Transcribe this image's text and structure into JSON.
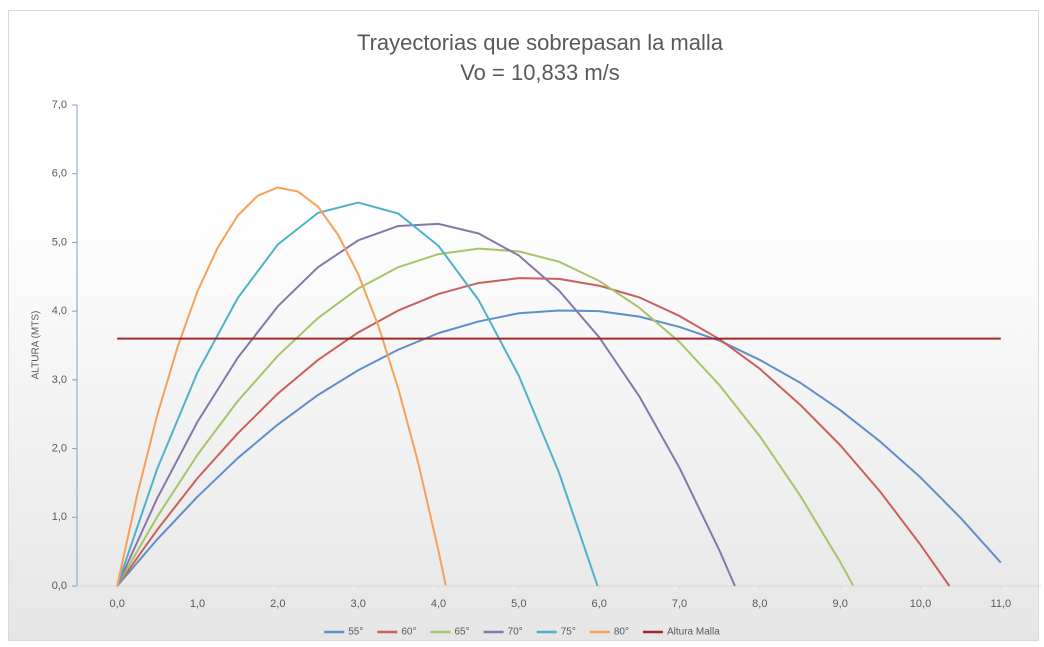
{
  "chart_data": {
    "type": "line",
    "title": "Trayectorias que sobrepasan la malla",
    "subtitle": "Vo = 10,833 m/s",
    "ylabel": "ALTURA (MTS)",
    "xlim": [
      -0.5,
      11.5
    ],
    "ylim": [
      0,
      7
    ],
    "xticks": [
      {
        "value": 0,
        "label": "0,0"
      },
      {
        "value": 1,
        "label": "1,0"
      },
      {
        "value": 2,
        "label": "2,0"
      },
      {
        "value": 3,
        "label": "3,0"
      },
      {
        "value": 4,
        "label": "4,0"
      },
      {
        "value": 5,
        "label": "5,0"
      },
      {
        "value": 6,
        "label": "6,0"
      },
      {
        "value": 7,
        "label": "7,0"
      },
      {
        "value": 8,
        "label": "8,0"
      },
      {
        "value": 9,
        "label": "9,0"
      },
      {
        "value": 10,
        "label": "10,0"
      },
      {
        "value": 11,
        "label": "11,0"
      }
    ],
    "yticks": [
      {
        "value": 0,
        "label": "0,0"
      },
      {
        "value": 1,
        "label": "1,0"
      },
      {
        "value": 2,
        "label": "2,0"
      },
      {
        "value": 3,
        "label": "3,0"
      },
      {
        "value": 4,
        "label": "4,0"
      },
      {
        "value": 5,
        "label": "5,0"
      },
      {
        "value": 6,
        "label": "6,0"
      },
      {
        "value": 7,
        "label": "7,0"
      }
    ],
    "legend": "bottom",
    "series": [
      {
        "name": "55°",
        "color": "#5f8fcb",
        "x": [
          0,
          0.5,
          1,
          1.5,
          2,
          2.5,
          3,
          3.5,
          4,
          4.5,
          5,
          5.5,
          6,
          6.5,
          7,
          7.5,
          8,
          8.5,
          9,
          9.5,
          10,
          10.5,
          11
        ],
        "values": [
          0,
          0.68,
          1.3,
          1.86,
          2.35,
          2.78,
          3.14,
          3.44,
          3.68,
          3.85,
          3.97,
          4.01,
          4.0,
          3.92,
          3.77,
          3.57,
          3.29,
          2.96,
          2.56,
          2.1,
          1.58,
          0.99,
          0.34
        ]
      },
      {
        "name": "60°",
        "color": "#c8605c",
        "x": [
          0,
          0.5,
          1,
          1.5,
          2,
          2.5,
          3,
          3.5,
          4,
          4.5,
          5,
          5.5,
          6,
          6.5,
          7,
          7.5,
          8,
          8.5,
          9,
          9.5,
          10,
          10.36
        ],
        "values": [
          0,
          0.82,
          1.57,
          2.22,
          2.8,
          3.29,
          3.69,
          4.01,
          4.25,
          4.41,
          4.48,
          4.47,
          4.37,
          4.2,
          3.93,
          3.59,
          3.16,
          2.64,
          2.05,
          1.37,
          0.6,
          0
        ]
      },
      {
        "name": "65°",
        "color": "#a6c468",
        "x": [
          0,
          0.5,
          1,
          1.5,
          2,
          2.5,
          3,
          3.5,
          4,
          4.5,
          5,
          5.5,
          6,
          6.5,
          7,
          7.5,
          8,
          8.5,
          9,
          9.16
        ],
        "values": [
          0,
          1.01,
          1.91,
          2.69,
          3.35,
          3.9,
          4.33,
          4.64,
          4.83,
          4.91,
          4.87,
          4.72,
          4.44,
          4.05,
          3.55,
          2.92,
          2.18,
          1.32,
          0.35,
          0.01
        ]
      },
      {
        "name": "70°",
        "color": "#8a75ab",
        "x": [
          0,
          0.5,
          1,
          1.5,
          2,
          2.5,
          3,
          3.5,
          4,
          4.5,
          5,
          5.5,
          6,
          6.5,
          7,
          7.5,
          7.69
        ],
        "values": [
          0,
          1.28,
          2.39,
          3.32,
          4.07,
          4.64,
          5.03,
          5.24,
          5.27,
          5.13,
          4.81,
          4.3,
          3.62,
          2.76,
          1.72,
          0.51,
          0
        ]
      },
      {
        "name": "75°",
        "color": "#4fb2c9",
        "x": [
          0,
          0.5,
          1,
          1.5,
          2,
          2.5,
          3,
          3.5,
          4,
          4.5,
          5,
          5.5,
          5.98
        ],
        "values": [
          0,
          1.71,
          3.11,
          4.19,
          4.97,
          5.43,
          5.58,
          5.42,
          4.95,
          4.16,
          3.06,
          1.65,
          0
        ]
      },
      {
        "name": "80°",
        "color": "#f6a05a",
        "x": [
          0,
          0.25,
          0.5,
          0.75,
          1,
          1.25,
          1.5,
          1.75,
          2,
          2.25,
          2.5,
          2.75,
          3,
          3.25,
          3.5,
          3.75,
          4,
          4.09
        ],
        "values": [
          0,
          1.33,
          2.49,
          3.47,
          4.29,
          4.92,
          5.39,
          5.68,
          5.8,
          5.74,
          5.52,
          5.11,
          4.54,
          3.79,
          2.87,
          1.78,
          0.51,
          0.01
        ]
      },
      {
        "name": "Altura Malla",
        "color": "#9c2a2a",
        "x": [
          0,
          11
        ],
        "values": [
          3.6,
          3.6
        ]
      }
    ]
  }
}
